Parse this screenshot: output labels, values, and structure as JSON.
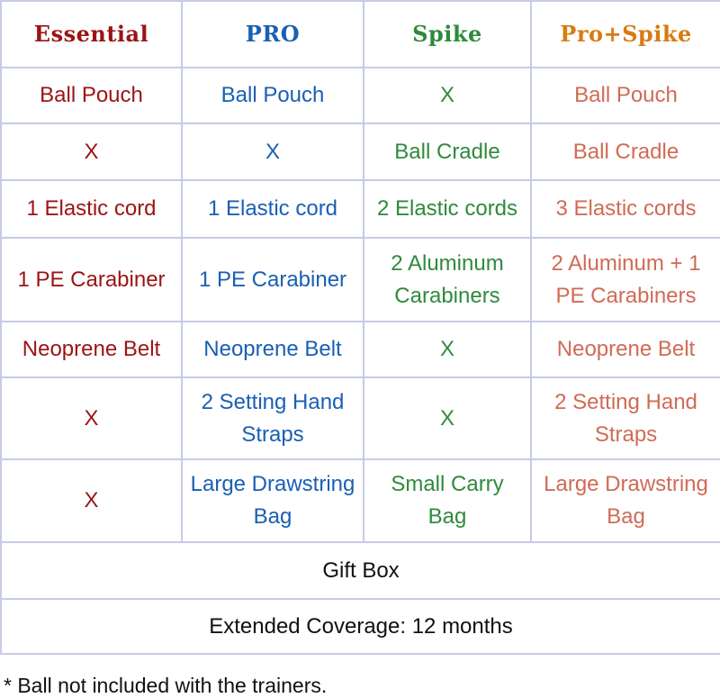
{
  "colors": {
    "essential": "#9b1414",
    "pro": "#1a5fb4",
    "spike": "#2f8a3c",
    "prospike": "#d06b55",
    "header_pro_spike": "#d97a12",
    "border": "#c7cbe6"
  },
  "headers": [
    "Essential",
    "PRO",
    "Spike",
    "Pro+Spike"
  ],
  "rows": [
    [
      "Ball Pouch",
      "Ball Pouch",
      "X",
      "Ball Pouch"
    ],
    [
      "X",
      "X",
      "Ball Cradle",
      "Ball Cradle"
    ],
    [
      "1 Elastic cord",
      "1 Elastic cord",
      "2 Elastic cords",
      "3 Elastic cords"
    ],
    [
      "1 PE Carabiner",
      "1 PE Carabiner",
      "2 Aluminum Carabiners",
      "2 Aluminum + 1 PE Carabiners"
    ],
    [
      "Neoprene Belt",
      "Neoprene Belt",
      "X",
      "Neoprene Belt"
    ],
    [
      "X",
      "2 Setting Hand Straps",
      "X",
      "2 Setting Hand Straps"
    ],
    [
      "X",
      "Large Drawstring Bag",
      "Small Carry Bag",
      "Large Drawstring Bag"
    ]
  ],
  "gift_box": "Gift Box",
  "coverage": "Extended Coverage: 12 months",
  "footnote": "* Ball not included with the trainers."
}
